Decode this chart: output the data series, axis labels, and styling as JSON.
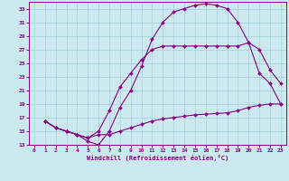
{
  "xlabel": "Windchill (Refroidissement éolien,°C)",
  "bg_color": "#cce9f0",
  "grid_color": "#aad4e0",
  "line_color": "#880088",
  "xlim": [
    -0.5,
    23.5
  ],
  "ylim": [
    13,
    34
  ],
  "xticks": [
    0,
    1,
    2,
    3,
    4,
    5,
    6,
    7,
    8,
    9,
    10,
    11,
    12,
    13,
    14,
    15,
    16,
    17,
    18,
    19,
    20,
    21,
    22,
    23
  ],
  "yticks": [
    13,
    15,
    17,
    19,
    21,
    23,
    25,
    27,
    29,
    31,
    33
  ],
  "series": [
    {
      "x": [
        1,
        2,
        3,
        4,
        5,
        6,
        7,
        8,
        9,
        10,
        11,
        12,
        13,
        14,
        15,
        16,
        17,
        18,
        19,
        20,
        21,
        22,
        23
      ],
      "y": [
        16.5,
        15.5,
        15,
        14.5,
        13.5,
        13,
        15,
        18.5,
        21,
        24.5,
        28.5,
        31,
        32.5,
        33,
        33.5,
        33.7,
        33.5,
        33,
        31,
        28,
        23.5,
        22,
        19
      ]
    },
    {
      "x": [
        1,
        2,
        3,
        4,
        5,
        6,
        7,
        8,
        9,
        10,
        11,
        12,
        13,
        14,
        15,
        16,
        17,
        18,
        19,
        20,
        21,
        22,
        23
      ],
      "y": [
        16.5,
        15.5,
        15,
        14.5,
        14,
        15,
        18,
        21.5,
        23.5,
        25.5,
        27,
        27.5,
        27.5,
        27.5,
        27.5,
        27.5,
        27.5,
        27.5,
        27.5,
        28,
        27,
        24,
        22
      ]
    },
    {
      "x": [
        1,
        2,
        3,
        4,
        5,
        6,
        7,
        8,
        9,
        10,
        11,
        12,
        13,
        14,
        15,
        16,
        17,
        18,
        19,
        20,
        21,
        22,
        23
      ],
      "y": [
        16.5,
        15.5,
        15,
        14.5,
        14,
        14.5,
        14.5,
        15,
        15.5,
        16,
        16.5,
        16.8,
        17,
        17.2,
        17.4,
        17.5,
        17.6,
        17.7,
        18,
        18.5,
        18.8,
        19,
        19
      ]
    }
  ]
}
